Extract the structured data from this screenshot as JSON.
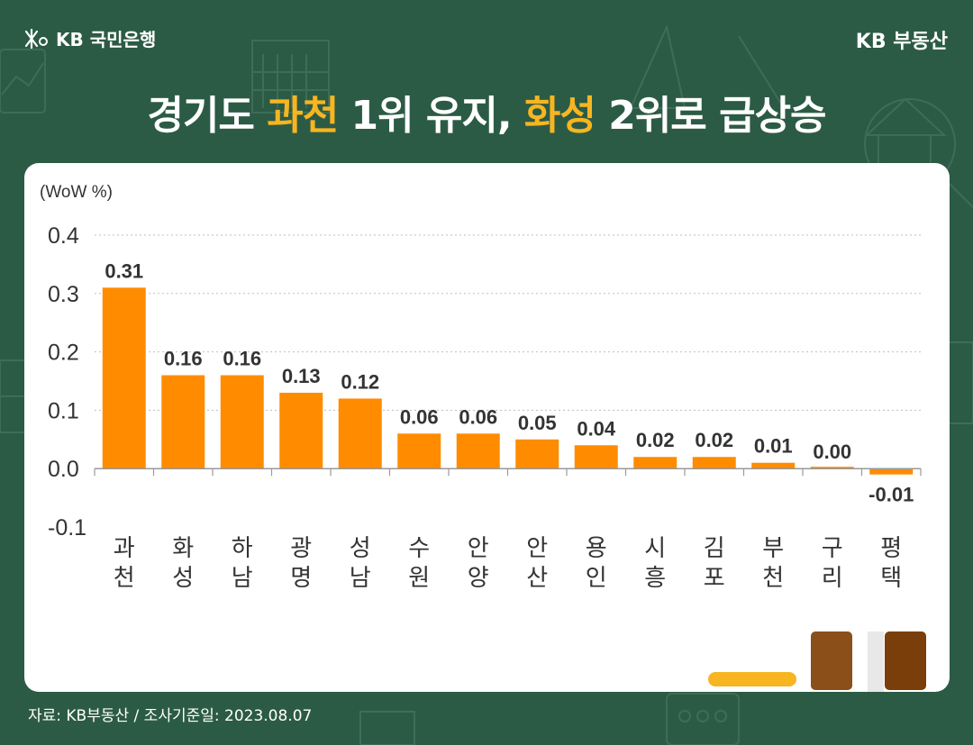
{
  "header": {
    "logo_text": "KB 국민은행",
    "brand_text": "KB 부동산"
  },
  "headline": {
    "part1": "경기도 ",
    "highlight1": "과천",
    "part2": " 1위 유지, ",
    "highlight2": "화성",
    "part3": " 2위로 급상승"
  },
  "footer": {
    "source": "자료: KB부동산 / 조사기준일: 2023.08.07"
  },
  "colors": {
    "background": "#2c5b45",
    "bar": "#ff8c00",
    "highlight": "#f7b521"
  },
  "chart_data": {
    "type": "bar",
    "ylabel": "(WoW %)",
    "ylim": [
      -0.1,
      0.4
    ],
    "yticks": [
      "0.4",
      "0.3",
      "0.2",
      "0.1",
      "0.0",
      "-0.1"
    ],
    "grid": true,
    "categories": [
      "과천",
      "화성",
      "하남",
      "광명",
      "성남",
      "수원",
      "안양",
      "안산",
      "용인",
      "시흥",
      "김포",
      "부천",
      "구리",
      "평택"
    ],
    "values": [
      0.31,
      0.16,
      0.16,
      0.13,
      0.12,
      0.06,
      0.06,
      0.05,
      0.04,
      0.02,
      0.02,
      0.01,
      0.0,
      -0.01
    ],
    "labels": [
      "0.31",
      "0.16",
      "0.16",
      "0.13",
      "0.12",
      "0.06",
      "0.06",
      "0.05",
      "0.04",
      "0.02",
      "0.02",
      "0.01",
      "0.00",
      "-0.01"
    ]
  }
}
